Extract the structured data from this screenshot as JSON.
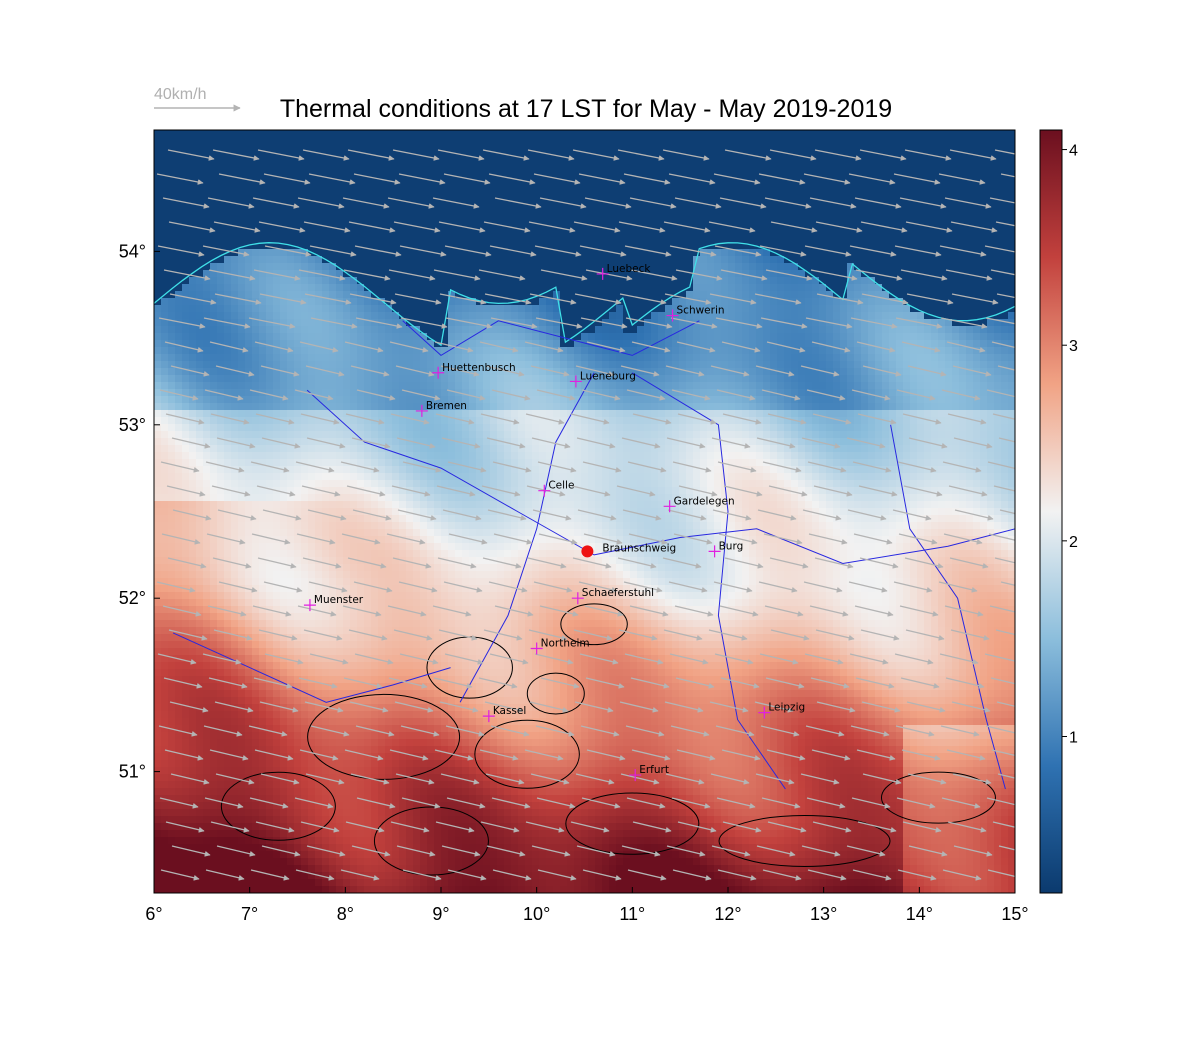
{
  "title": "Thermal conditions at 17 LST for May - May  2019-2019",
  "wind_reference": {
    "label": "40km/h",
    "speed_kmh": 40,
    "color": "#b4b4b4"
  },
  "x_ticks": [
    "6°",
    "7°",
    "8°",
    "9°",
    "10°",
    "11°",
    "12°",
    "13°",
    "14°",
    "15°"
  ],
  "y_ticks": [
    "54°",
    "53°",
    "52°",
    "51°"
  ],
  "map_extent": {
    "lon": [
      6,
      15
    ],
    "lat": [
      50.3,
      54.7
    ]
  },
  "colorbar": {
    "min": 0.2,
    "max": 4.1,
    "ticks": [
      "1",
      "2",
      "3",
      "4"
    ],
    "tick_values": [
      1,
      2,
      3,
      4
    ],
    "colors": [
      "#0b3a6e",
      "#2f72b2",
      "#8cbedc",
      "#f2f2f2",
      "#f1a385",
      "#c2413d",
      "#6b0f1f"
    ]
  },
  "colors": {
    "sea": "#0b3a6e",
    "coast": "#40e0e8",
    "rivers": "#2828e0",
    "contours": "#000000",
    "wind_arrows": "#b4b4b4",
    "city_marker": "#e020e0",
    "home_marker": "#ee1111"
  },
  "home": {
    "name": "Braunschweig",
    "lon": 10.53,
    "lat": 52.27
  },
  "cities": [
    {
      "name": "Luebeck",
      "lon": 10.69,
      "lat": 53.87
    },
    {
      "name": "Schwerin",
      "lon": 11.42,
      "lat": 53.63
    },
    {
      "name": "Huettenbusch",
      "lon": 8.97,
      "lat": 53.3
    },
    {
      "name": "Lueneburg",
      "lon": 10.41,
      "lat": 53.25
    },
    {
      "name": "Bremen",
      "lon": 8.8,
      "lat": 53.08
    },
    {
      "name": "Celle",
      "lon": 10.08,
      "lat": 52.62
    },
    {
      "name": "Gardelegen",
      "lon": 11.39,
      "lat": 52.53
    },
    {
      "name": "Burg",
      "lon": 11.86,
      "lat": 52.27
    },
    {
      "name": "Muenster",
      "lon": 7.63,
      "lat": 51.96
    },
    {
      "name": "Schaeferstuhl",
      "lon": 10.43,
      "lat": 52.0
    },
    {
      "name": "Northeim",
      "lon": 10.0,
      "lat": 51.71
    },
    {
      "name": "Kassel",
      "lon": 9.5,
      "lat": 51.32
    },
    {
      "name": "Leipzig",
      "lon": 12.38,
      "lat": 51.34
    },
    {
      "name": "Erfurt",
      "lon": 11.03,
      "lat": 50.98
    }
  ]
}
